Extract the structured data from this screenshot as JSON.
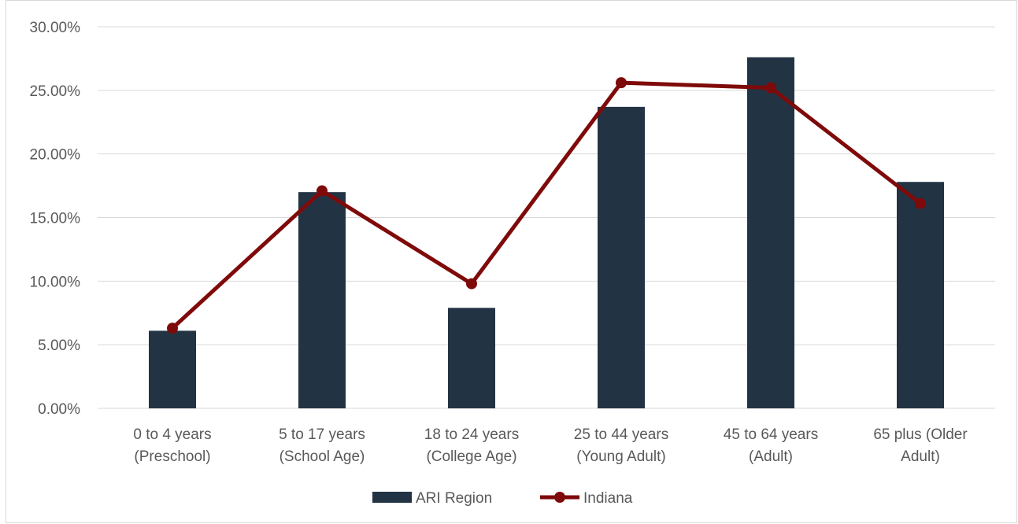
{
  "chart_data": {
    "type": "bar",
    "categories": [
      [
        "0 to 4 years",
        "(Preschool)"
      ],
      [
        "5 to 17 years",
        "(School Age)"
      ],
      [
        "18 to 24 years",
        "(College Age)"
      ],
      [
        "25 to 44 years",
        "(Young Adult)"
      ],
      [
        "45 to 64 years",
        "(Adult)"
      ],
      [
        "65 plus (Older",
        "Adult)"
      ]
    ],
    "series": [
      {
        "name": "ARI Region",
        "type": "bar",
        "color": "#223344",
        "values": [
          6.1,
          17.0,
          7.9,
          23.7,
          27.6,
          17.8
        ]
      },
      {
        "name": "Indiana",
        "type": "line",
        "color": "#7f0a0a",
        "values": [
          6.3,
          17.1,
          9.8,
          25.6,
          25.2,
          16.1
        ]
      }
    ],
    "y_ticks": [
      "0.00%",
      "5.00%",
      "10.00%",
      "15.00%",
      "20.00%",
      "25.00%",
      "30.00%"
    ],
    "ylim": [
      0,
      30
    ],
    "grid": true,
    "legend_position": "bottom"
  }
}
